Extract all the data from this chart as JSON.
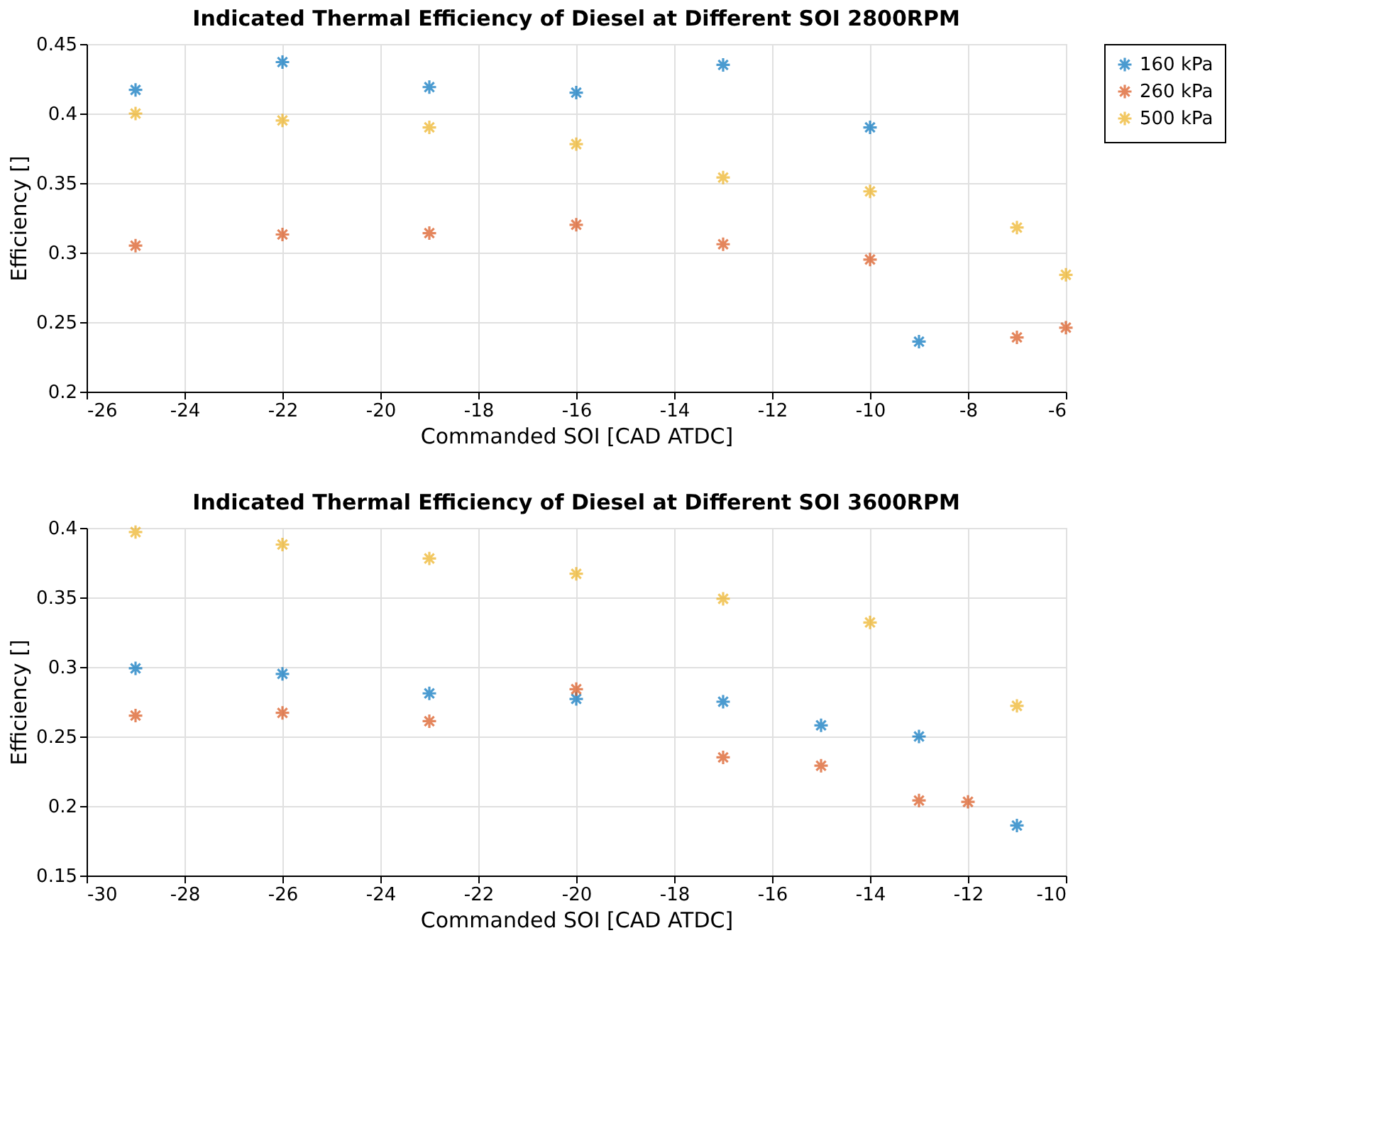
{
  "chart_data": [
    {
      "type": "scatter",
      "title": "Indicated Thermal Efficiency of Diesel at Different SOI 2800RPM",
      "xlabel": "Commanded SOI [CAD ATDC]",
      "ylabel": "Efficiency []",
      "xlim": [
        -26,
        -6
      ],
      "xticks": [
        -26,
        -24,
        -22,
        -20,
        -18,
        -16,
        -14,
        -12,
        -10,
        -8,
        -6
      ],
      "ylim": [
        0.2,
        0.45
      ],
      "yticks": [
        0.2,
        0.25,
        0.3,
        0.35,
        0.4,
        0.45
      ],
      "grid": true,
      "legend": "top right",
      "marker": "cross",
      "series": [
        {
          "name": "160 kPa",
          "color": "#0072bd",
          "x": [
            -25,
            -22,
            -19,
            -16,
            -13,
            -10,
            -9
          ],
          "values": [
            0.417,
            0.437,
            0.419,
            0.415,
            0.435,
            0.39,
            0.236
          ]
        },
        {
          "name": "260 kPa",
          "color": "#d95319",
          "x": [
            -25,
            -22,
            -19,
            -16,
            -13,
            -10,
            -7,
            -6
          ],
          "values": [
            0.305,
            0.313,
            0.314,
            0.32,
            0.306,
            0.295,
            0.239,
            0.246
          ]
        },
        {
          "name": "500 kPa",
          "color": "#edb120",
          "x": [
            -25,
            -22,
            -19,
            -16,
            -13,
            -10,
            -7,
            -6
          ],
          "values": [
            0.4,
            0.395,
            0.39,
            0.378,
            0.354,
            0.344,
            0.318,
            0.284
          ]
        }
      ]
    },
    {
      "type": "scatter",
      "title": "Indicated Thermal Efficiency of Diesel at Different SOI 3600RPM",
      "xlabel": "Commanded SOI [CAD ATDC]",
      "ylabel": "Efficiency []",
      "xlim": [
        -30,
        -10
      ],
      "xticks": [
        -30,
        -28,
        -26,
        -24,
        -22,
        -20,
        -18,
        -16,
        -14,
        -12,
        -10
      ],
      "ylim": [
        0.15,
        0.4
      ],
      "yticks": [
        0.15,
        0.2,
        0.25,
        0.3,
        0.35,
        0.4
      ],
      "grid": true,
      "legend": "top right",
      "marker": "cross",
      "series": [
        {
          "name": "160 kPa",
          "color": "#0072bd",
          "x": [
            -29,
            -26,
            -23,
            -20,
            -17,
            -15,
            -13,
            -11
          ],
          "values": [
            0.299,
            0.295,
            0.281,
            0.277,
            0.275,
            0.258,
            0.25,
            0.186
          ]
        },
        {
          "name": "260 kPa",
          "color": "#d95319",
          "x": [
            -29,
            -26,
            -23,
            -20,
            -17,
            -15,
            -13,
            -12
          ],
          "values": [
            0.265,
            0.267,
            0.261,
            0.284,
            0.235,
            0.229,
            0.204,
            0.203
          ]
        },
        {
          "name": "500 kPa",
          "color": "#edb120",
          "x": [
            -29,
            -26,
            -23,
            -20,
            -17,
            -14,
            -11
          ],
          "values": [
            0.397,
            0.388,
            0.378,
            0.367,
            0.349,
            0.332,
            0.272
          ]
        }
      ]
    }
  ]
}
